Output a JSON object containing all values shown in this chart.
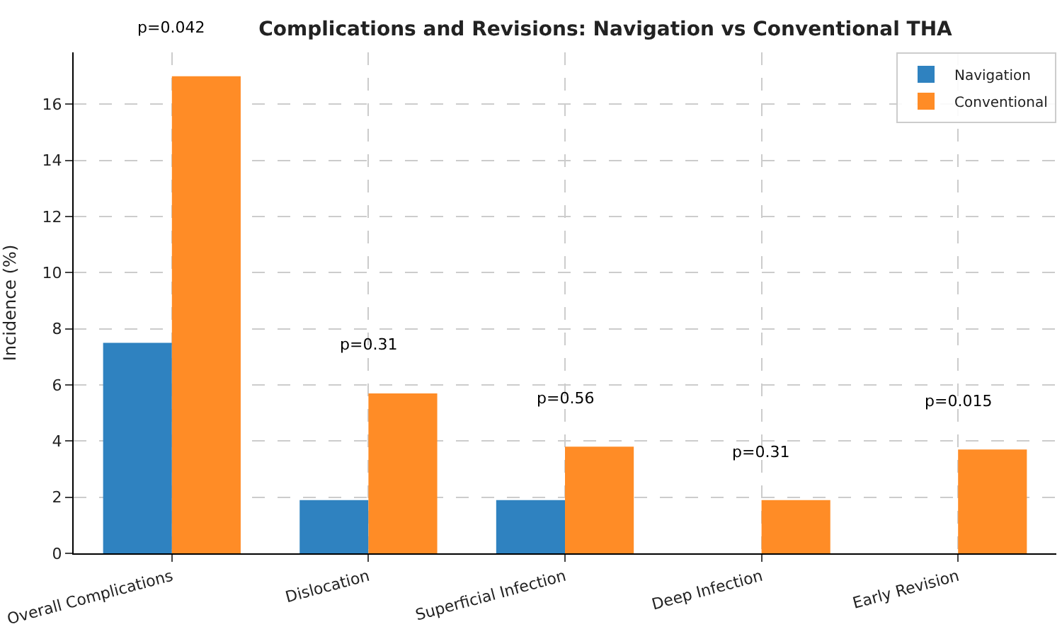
{
  "chart_data": {
    "type": "bar",
    "title": "Complications and Revisions: Navigation vs Conventional THA",
    "ylabel": "Incidence (%)",
    "categories": [
      "Overall Complications",
      "Dislocation",
      "Superficial Infection",
      "Deep Infection",
      "Early Revision"
    ],
    "series": [
      {
        "name": "Navigation",
        "color": "#2f82c0",
        "values": [
          7.5,
          1.9,
          1.9,
          0,
          0
        ]
      },
      {
        "name": "Conventional",
        "color": "#ff8c26",
        "values": [
          17.0,
          5.7,
          3.8,
          1.9,
          3.7
        ]
      }
    ],
    "annotations": [
      "p=0.042",
      "p=0.31",
      "p=0.56",
      "p=0.31",
      "p=0.015"
    ],
    "ylim": [
      0,
      17.85
    ],
    "yticks": [
      0,
      2,
      4,
      6,
      8,
      10,
      12,
      14,
      16
    ],
    "grid": true,
    "legend": "top right"
  }
}
